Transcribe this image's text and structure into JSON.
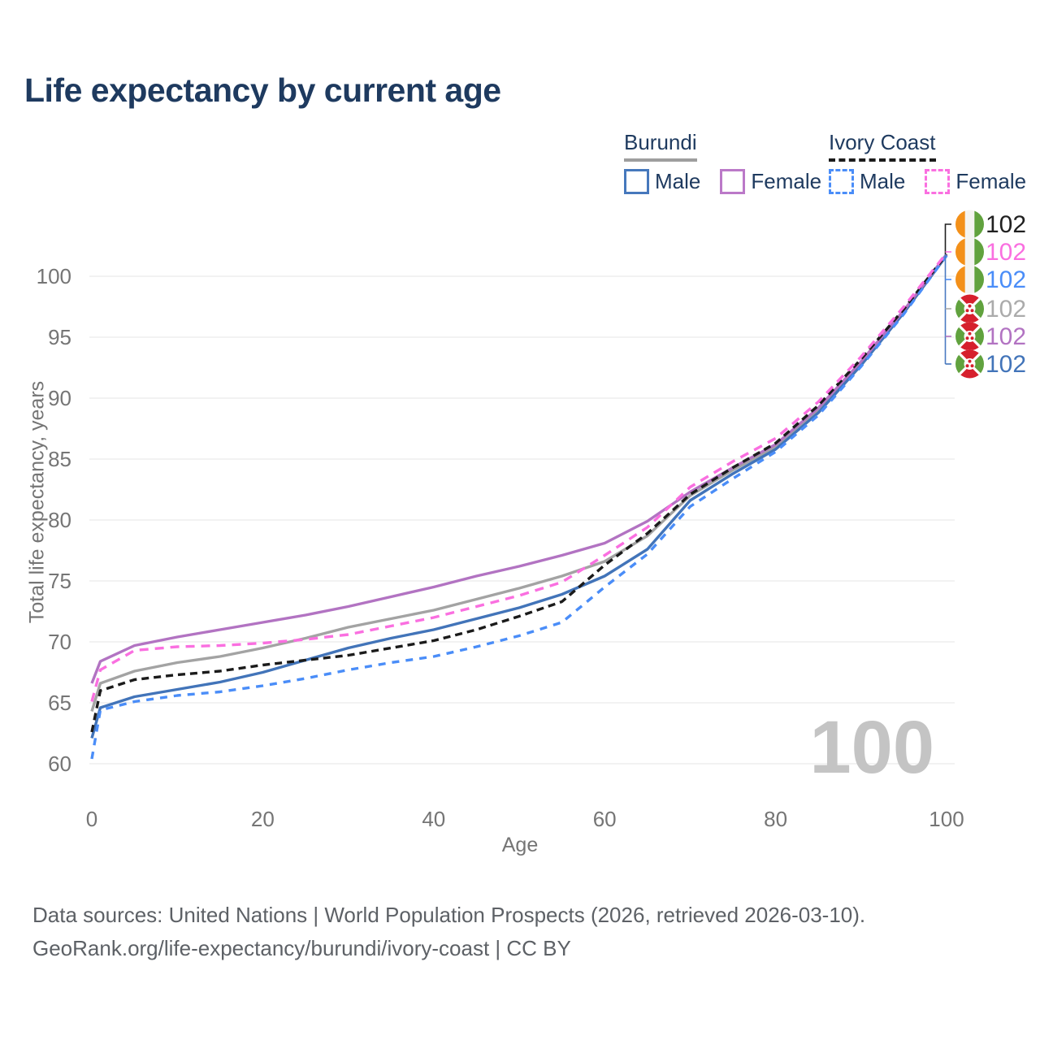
{
  "title": "Life expectancy by current age",
  "legend": {
    "groups": [
      {
        "name": "Burundi",
        "line_style": "solid",
        "underline_color": "#9e9e9e",
        "items": [
          {
            "label": "Male",
            "color": "#4678bc"
          },
          {
            "label": "Female",
            "color": "#bb79c8"
          }
        ]
      },
      {
        "name": "Ivory Coast",
        "line_style": "dashed",
        "underline_color": "#1b1b1b",
        "items": [
          {
            "label": "Male",
            "color": "#4a8df8"
          },
          {
            "label": "Female",
            "color": "#fa6fe0"
          }
        ]
      }
    ]
  },
  "watermark": "100",
  "footer": {
    "line1": "Data sources: United Nations | World Population Prospects (2026, retrieved 2026-03-10).",
    "line2": "GeoRank.org/life-expectancy/burundi/ivory-coast | CC BY"
  },
  "chart_data": {
    "type": "line",
    "title": "Life expectancy by current age",
    "xlabel": "Age",
    "ylabel": "Total life expectancy, years",
    "xlim": [
      0,
      100
    ],
    "ylim": [
      60,
      102
    ],
    "x_ticks": [
      0,
      20,
      40,
      60,
      80,
      100
    ],
    "y_ticks": [
      60,
      65,
      70,
      75,
      80,
      85,
      90,
      95,
      100
    ],
    "grid": "horizontal",
    "legend_position": "top-right",
    "ages": [
      0,
      1,
      5,
      10,
      15,
      20,
      25,
      30,
      35,
      40,
      45,
      50,
      55,
      60,
      65,
      70,
      75,
      80,
      85,
      90,
      95,
      100
    ],
    "series": [
      {
        "name": "Burundi (both sexes)",
        "country": "Burundi",
        "sex": "Both",
        "color": "#a3a3a3",
        "dash": "solid",
        "values": [
          64.3,
          66.6,
          67.6,
          68.3,
          68.8,
          69.5,
          70.3,
          71.2,
          71.9,
          72.6,
          73.5,
          74.4,
          75.4,
          76.6,
          78.7,
          82.0,
          84.1,
          86.0,
          89.0,
          92.9,
          97.1,
          101.8
        ]
      },
      {
        "name": "Burundi Male",
        "country": "Burundi",
        "sex": "Male",
        "color": "#4274b9",
        "dash": "solid",
        "values": [
          62.1,
          64.6,
          65.5,
          66.1,
          66.7,
          67.5,
          68.5,
          69.5,
          70.3,
          71.0,
          71.9,
          72.8,
          73.9,
          75.4,
          77.6,
          81.6,
          83.8,
          85.8,
          88.8,
          92.7,
          97.0,
          101.7
        ]
      },
      {
        "name": "Burundi Female",
        "country": "Burundi",
        "sex": "Female",
        "color": "#b273c2",
        "dash": "solid",
        "values": [
          66.6,
          68.4,
          69.7,
          70.4,
          71.0,
          71.6,
          72.2,
          72.9,
          73.7,
          74.5,
          75.4,
          76.2,
          77.1,
          78.1,
          79.9,
          82.3,
          84.3,
          86.2,
          89.2,
          93.0,
          97.2,
          101.8
        ]
      },
      {
        "name": "Ivory Coast (both sexes)",
        "country": "Ivory Coast",
        "sex": "Both",
        "color": "#1b1b1b",
        "dash": "9 6",
        "values": [
          62.6,
          66.0,
          66.9,
          67.3,
          67.6,
          68.1,
          68.5,
          68.9,
          69.5,
          70.1,
          71.0,
          72.1,
          73.3,
          76.3,
          78.9,
          82.1,
          84.3,
          86.3,
          89.4,
          93.2,
          97.3,
          101.8
        ]
      },
      {
        "name": "Ivory Coast Male",
        "country": "Ivory Coast",
        "sex": "Male",
        "color": "#4a8df8",
        "dash": "9 8",
        "values": [
          60.4,
          64.4,
          65.1,
          65.6,
          65.9,
          66.4,
          67.0,
          67.7,
          68.3,
          68.8,
          69.6,
          70.5,
          71.6,
          74.5,
          77.2,
          81.1,
          83.4,
          85.6,
          88.6,
          92.6,
          96.9,
          101.7
        ]
      },
      {
        "name": "Ivory Coast Female",
        "country": "Ivory Coast",
        "sex": "Female",
        "color": "#fa6fe0",
        "dash": "11 8",
        "values": [
          65.1,
          67.7,
          69.3,
          69.6,
          69.7,
          69.9,
          70.2,
          70.6,
          71.3,
          72.0,
          72.9,
          73.8,
          74.9,
          77.1,
          79.4,
          82.7,
          84.8,
          86.7,
          89.7,
          93.4,
          97.5,
          101.9
        ]
      }
    ],
    "end_labels": [
      {
        "flag": "ivory-coast",
        "series": "Ivory Coast (both sexes)",
        "value": "102",
        "color": "#202020"
      },
      {
        "flag": "ivory-coast",
        "series": "Ivory Coast Female",
        "value": "102",
        "color": "#fa6fe0"
      },
      {
        "flag": "ivory-coast",
        "series": "Ivory Coast Male",
        "value": "102",
        "color": "#4a8df8"
      },
      {
        "flag": "burundi",
        "series": "Burundi (both sexes)",
        "value": "102",
        "color": "#ababab"
      },
      {
        "flag": "burundi",
        "series": "Burundi Female",
        "value": "102",
        "color": "#b273c2"
      },
      {
        "flag": "burundi",
        "series": "Burundi Male",
        "value": "102",
        "color": "#4274b9"
      }
    ],
    "flag_colors": {
      "ivory_coast": {
        "orange": "#f39019",
        "white": "#f4f4f1",
        "green": "#61a23e"
      },
      "burundi": {
        "red": "#d6202d",
        "green": "#61a23e",
        "white": "#ffffff"
      }
    }
  }
}
